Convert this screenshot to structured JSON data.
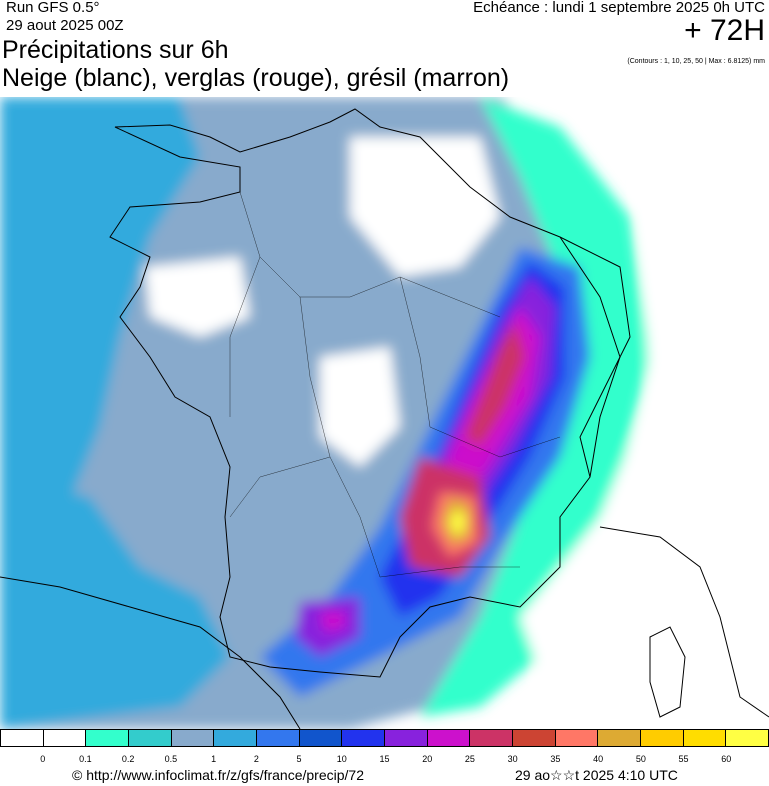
{
  "header": {
    "run": "Run GFS 0.5°",
    "run_date": "29 aout 2025 00Z",
    "echeance": "Echéance : lundi 1 septembre 2025 0h UTC",
    "hour": "+ 72H",
    "contours": "(Contours : 1, 10, 25, 50 | Max : 6.8125) mm",
    "title_line1": "Précipitations sur 6h",
    "title_line2": "Neige (blanc), verglas (rouge), grésil (marron)"
  },
  "legend": {
    "colors": [
      "#ffffff",
      "#ffffff",
      "#33ffcc",
      "#33cccc",
      "#88aacc",
      "#33aadd",
      "#3377ee",
      "#1155cc",
      "#2233ee",
      "#8822dd",
      "#cc11cc",
      "#cc3366",
      "#cc4433",
      "#ff7766",
      "#ddaa33",
      "#ffcc00",
      "#ffdd00",
      "#ffff44"
    ],
    "ticks": [
      "0",
      "0.1",
      "0.2",
      "0.5",
      "1",
      "2",
      "5",
      "10",
      "15",
      "20",
      "25",
      "30",
      "35",
      "40",
      "50",
      "55",
      "60"
    ]
  },
  "footer": {
    "credit": "© http://www.infoclimat.fr/z/gfs/france/precip/72",
    "timestamp": "29 ao☆☆t 2025  4:10 UTC"
  }
}
